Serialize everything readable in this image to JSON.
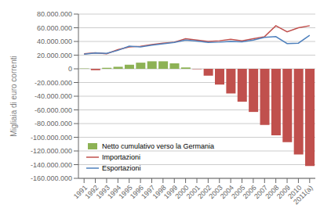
{
  "chart_data": {
    "type": "bar",
    "ylabel": "Migliaia di euro correnti",
    "categories": [
      "1991",
      "1992",
      "1993",
      "1994",
      "1995",
      "1996",
      "1997",
      "1998",
      "1999",
      "2000",
      "2001",
      "2002",
      "2003",
      "2004",
      "2005",
      "2006",
      "2007",
      "2008",
      "2009",
      "2010",
      "2011(a)"
    ],
    "series": [
      {
        "name": "Netto cumulativo verso la Germania",
        "type": "bar",
        "color": "#8DB255",
        "colors": [
          "#8DB255",
          "#C0504D",
          "#8DB255",
          "#8DB255",
          "#8DB255",
          "#8DB255",
          "#8DB255",
          "#8DB255",
          "#8DB255",
          "#8DB255",
          "#C0504D",
          "#C0504D",
          "#C0504D",
          "#C0504D",
          "#C0504D",
          "#C0504D",
          "#C0504D",
          "#C0504D",
          "#C0504D",
          "#C0504D",
          "#C0504D"
        ],
        "values": [
          500000,
          -2000000,
          1500000,
          3000000,
          6000000,
          9000000,
          11000000,
          11000000,
          8000000,
          2000000,
          -500000,
          -10000000,
          -23000000,
          -36000000,
          -48000000,
          -63000000,
          -82000000,
          -97000000,
          -107000000,
          -125000000,
          -142000000
        ]
      },
      {
        "name": "Importazioni",
        "type": "line",
        "color": "#C0504D",
        "values": [
          22000000,
          23500000,
          22000000,
          28000000,
          32000000,
          33000000,
          35500000,
          37500000,
          39000000,
          44000000,
          42000000,
          40000000,
          41000000,
          43000000,
          41000000,
          44000000,
          47000000,
          63000000,
          54000000,
          60000000,
          63000000
        ]
      },
      {
        "name": "Esportazioni",
        "type": "line",
        "color": "#4F81BD",
        "values": [
          21500000,
          23000000,
          22500000,
          27000000,
          33000000,
          32000000,
          34500000,
          36500000,
          38500000,
          42000000,
          40500000,
          38500000,
          39000000,
          40000000,
          39500000,
          42000000,
          46000000,
          47000000,
          37000000,
          37500000,
          49000000
        ]
      }
    ],
    "ylim": [
      -160000000,
      80000000
    ],
    "yticks": [
      {
        "value": -160000000,
        "label": "-160.000.000"
      },
      {
        "value": -140000000,
        "label": "-140.000.000"
      },
      {
        "value": -120000000,
        "label": "-120.000.000"
      },
      {
        "value": -100000000,
        "label": "-100.000.000"
      },
      {
        "value": -80000000,
        "label": "-80.000.000"
      },
      {
        "value": -60000000,
        "label": "-60.000.000"
      },
      {
        "value": -40000000,
        "label": "-40.000.000"
      },
      {
        "value": -20000000,
        "label": "-20.000.000"
      },
      0,
      {
        "value": 20000000,
        "label": "20.000.000"
      },
      {
        "value": 40000000,
        "label": "40.000.000"
      },
      {
        "value": 60000000,
        "label": "60.000.000"
      },
      {
        "value": 80000000,
        "label": "80.000.000"
      }
    ],
    "grid": true,
    "legend": "lower left"
  }
}
